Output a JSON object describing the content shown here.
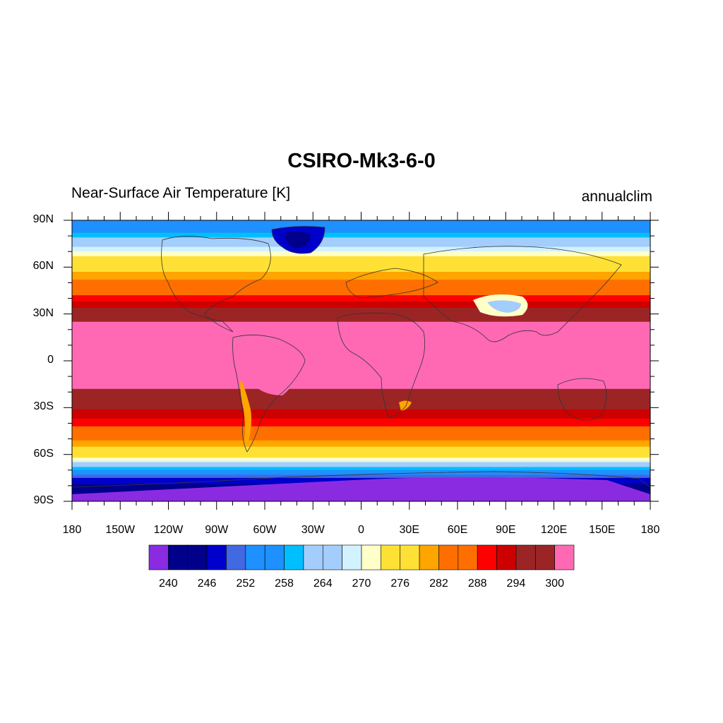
{
  "title": "CSIRO-Mk3-6-0",
  "left_string": "Near-Surface Air Temperature [K]",
  "right_string": "annualclim",
  "lat_labels": [
    "90N",
    "60N",
    "30N",
    "0",
    "30S",
    "60S",
    "90S"
  ],
  "lon_labels": [
    "180",
    "150W",
    "120W",
    "90W",
    "60W",
    "30W",
    "0",
    "30E",
    "60E",
    "90E",
    "120E",
    "150E",
    "180"
  ],
  "colorbar": {
    "colors": [
      "#8a2be2",
      "#00008b",
      "#00008b",
      "#0000cd",
      "#4169e1",
      "#1e90ff",
      "#1e90ff",
      "#00bfff",
      "#a3cdfc",
      "#a3cdfc",
      "#d2f2ff",
      "#ffffc8",
      "#ffe135",
      "#ffe135",
      "#ffa500",
      "#ff6f00",
      "#ff6f00",
      "#ff0000",
      "#cd0000",
      "#9b2525",
      "#9b2525",
      "#ff69b4"
    ],
    "labels": [
      "240",
      "246",
      "252",
      "258",
      "264",
      "270",
      "276",
      "282",
      "288",
      "294",
      "300"
    ]
  },
  "chart_data": {
    "type": "heatmap",
    "title": "CSIRO-Mk3-6-0",
    "variable": "Near-Surface Air Temperature [K]",
    "period": "annualclim",
    "x_range": [
      -180,
      180
    ],
    "y_range": [
      -90,
      90
    ],
    "levels": [
      237,
      240,
      243,
      246,
      249,
      252,
      255,
      258,
      261,
      264,
      267,
      270,
      273,
      276,
      279,
      282,
      285,
      288,
      291,
      294,
      297,
      300
    ],
    "zonal_mean_by_lat": [
      {
        "lat": 85,
        "value": 252
      },
      {
        "lat": 75,
        "value": 262
      },
      {
        "lat": 65,
        "value": 272
      },
      {
        "lat": 55,
        "value": 277
      },
      {
        "lat": 45,
        "value": 283
      },
      {
        "lat": 35,
        "value": 290
      },
      {
        "lat": 25,
        "value": 297
      },
      {
        "lat": 15,
        "value": 299
      },
      {
        "lat": 5,
        "value": 300
      },
      {
        "lat": -5,
        "value": 300
      },
      {
        "lat": -15,
        "value": 298
      },
      {
        "lat": -25,
        "value": 294
      },
      {
        "lat": -35,
        "value": 289
      },
      {
        "lat": -45,
        "value": 283
      },
      {
        "lat": -55,
        "value": 276
      },
      {
        "lat": -62,
        "value": 270
      },
      {
        "lat": -68,
        "value": 258
      },
      {
        "lat": -75,
        "value": 246
      },
      {
        "lat": -85,
        "value": 238
      }
    ]
  }
}
